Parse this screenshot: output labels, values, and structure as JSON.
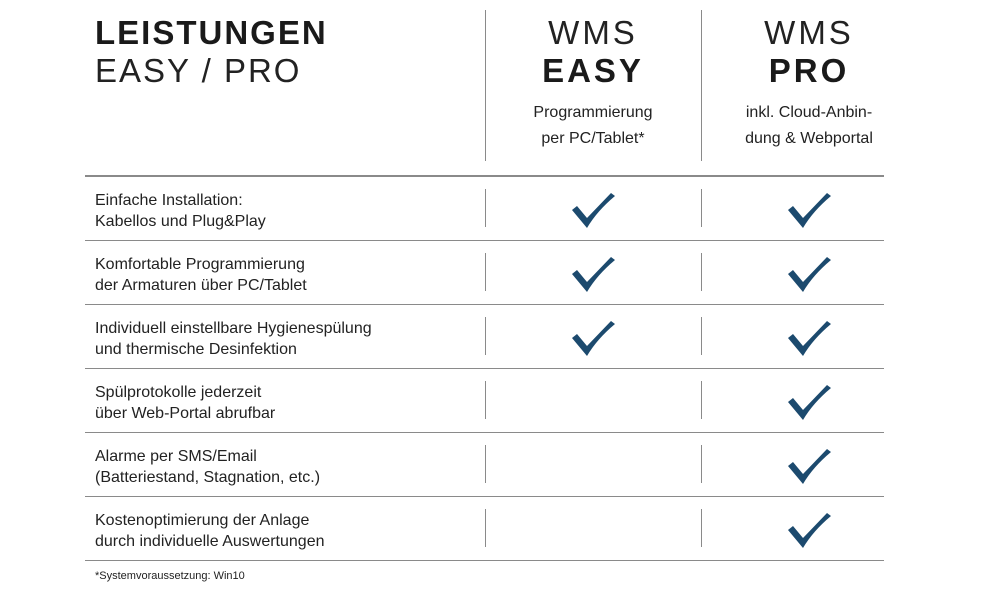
{
  "header": {
    "title_bold": "LEISTUNGEN",
    "title_light": "EASY / PRO"
  },
  "columns": [
    {
      "wms": "WMS",
      "tier": "EASY",
      "desc_line1": "Programmierung",
      "desc_line2": "per PC/Tablet*"
    },
    {
      "wms": "WMS",
      "tier": "PRO",
      "desc_line1": "inkl. Cloud-Anbin-",
      "desc_line2": "dung & Webportal"
    }
  ],
  "rows": [
    {
      "line1": "Einfache Installation:",
      "line2": "Kabellos und Plug&Play",
      "easy": true,
      "pro": true
    },
    {
      "line1": "Komfortable Programmierung",
      "line2": "der Armaturen über PC/Tablet",
      "easy": true,
      "pro": true
    },
    {
      "line1": "Individuell einstellbare Hygienespülung",
      "line2": "und thermische Desinfektion",
      "easy": true,
      "pro": true
    },
    {
      "line1": "Spülprotokolle jederzeit",
      "line2": "über Web-Portal abrufbar",
      "easy": false,
      "pro": true
    },
    {
      "line1": "Alarme per SMS/Email",
      "line2": "(Batteriestand, Stagnation, etc.)",
      "easy": false,
      "pro": true
    },
    {
      "line1": "Kostenoptimierung der Anlage",
      "line2": "durch individuelle Auswertungen",
      "easy": false,
      "pro": true
    }
  ],
  "footnote": "*Systemvoraussetzung: Win10",
  "colors": {
    "check": "#1c4a6e",
    "rule": "#8a8a8a",
    "text": "#222222"
  },
  "icons": {
    "included": "checkmark-icon"
  }
}
